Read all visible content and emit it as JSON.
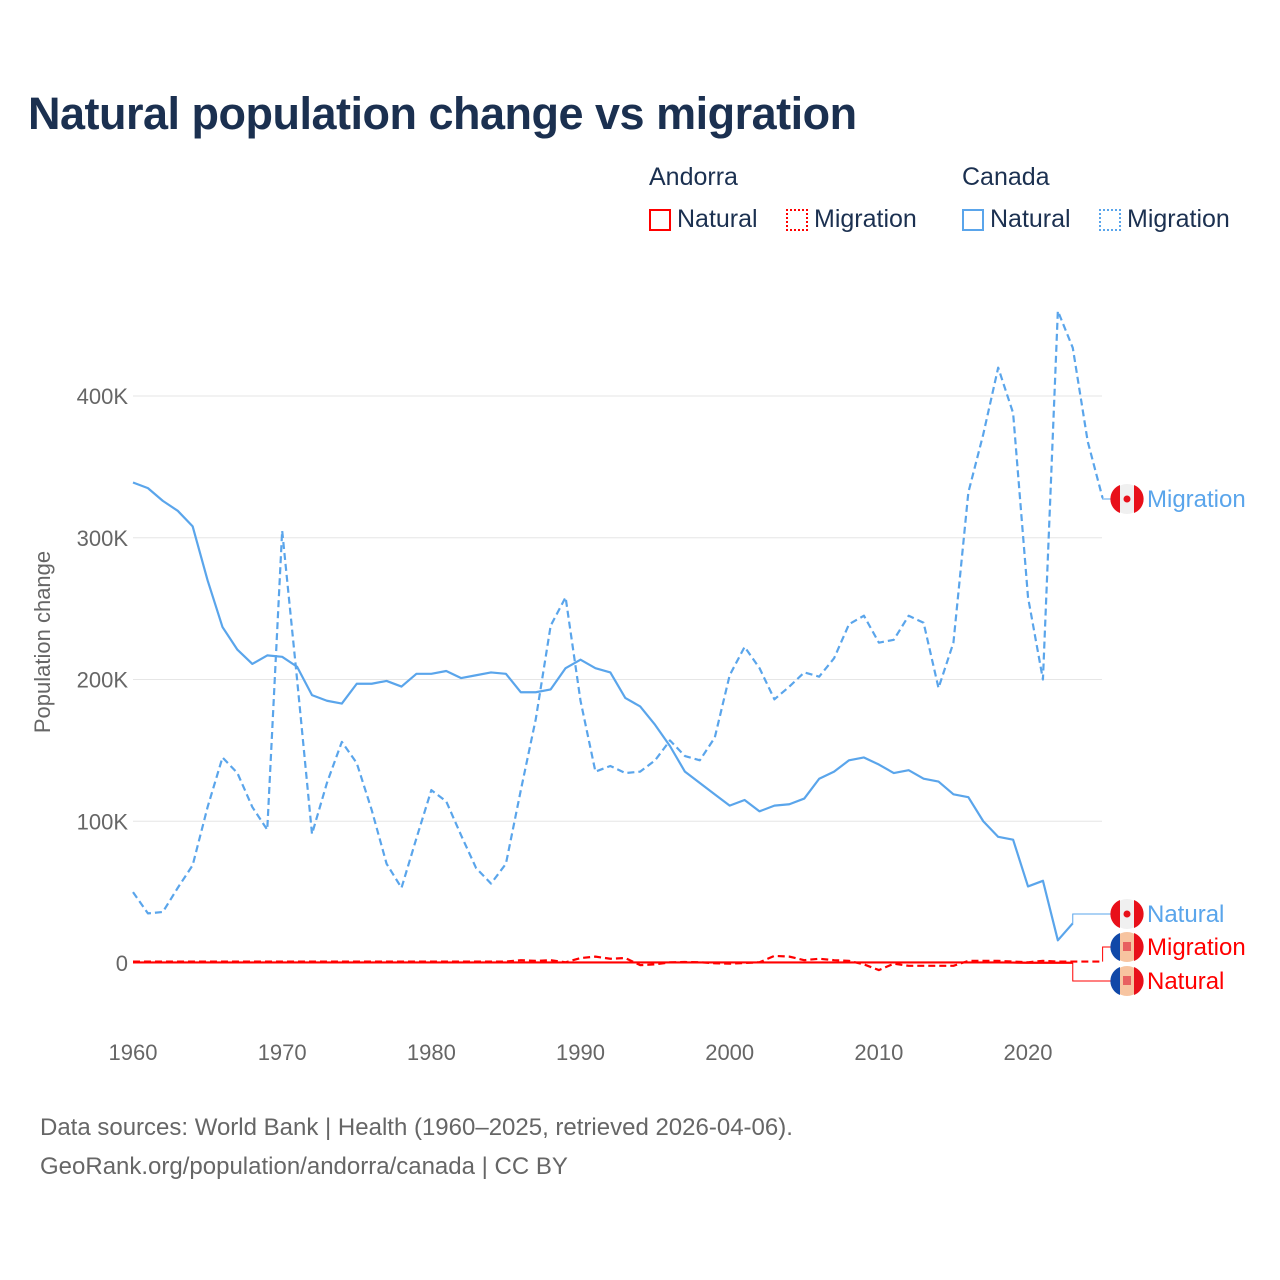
{
  "title": "Natural population change vs migration",
  "legend": {
    "groups": [
      {
        "name": "Andorra",
        "items": [
          {
            "label": "Natural",
            "style": "solid"
          },
          {
            "label": "Migration",
            "style": "dotted"
          }
        ],
        "color": "#ff0000"
      },
      {
        "name": "Canada",
        "items": [
          {
            "label": "Natural",
            "style": "solid"
          },
          {
            "label": "Migration",
            "style": "dotted"
          }
        ],
        "color": "#5aa5eb"
      }
    ]
  },
  "footer": {
    "line1": "Data sources: World Bank | Health (1960–2025, retrieved 2026-04-06).",
    "line2": "GeoRank.org/population/andorra/canada | CC BY"
  },
  "chart_data": {
    "type": "line",
    "title": "Natural population change vs migration",
    "xlabel": "",
    "ylabel": "Population change",
    "xlim": [
      1960,
      2025
    ],
    "ylim": [
      -50000,
      480000
    ],
    "xticks": [
      {
        "v": 1960,
        "label": "1960"
      },
      {
        "v": 1970,
        "label": "1970"
      },
      {
        "v": 1980,
        "label": "1980"
      },
      {
        "v": 1990,
        "label": "1990"
      },
      {
        "v": 2000,
        "label": "2000"
      },
      {
        "v": 2010,
        "label": "2010"
      },
      {
        "v": 2020,
        "label": "2020"
      }
    ],
    "yticks": [
      {
        "v": 0,
        "label": "0"
      },
      {
        "v": 100000,
        "label": "100K"
      },
      {
        "v": 200000,
        "label": "200K"
      },
      {
        "v": 300000,
        "label": "300K"
      },
      {
        "v": 400000,
        "label": "400K"
      }
    ],
    "grid": true,
    "series": [
      {
        "name": "Canada Migration",
        "end_label": "Migration",
        "color": "#5aa5eb",
        "dash": true,
        "start": 1960,
        "values": [
          50,
          35,
          36,
          53,
          69,
          110,
          145,
          134,
          110,
          94,
          305,
          200,
          91,
          127,
          156,
          141,
          108,
          70,
          53,
          88,
          122,
          114,
          90,
          67,
          56,
          70,
          122,
          172,
          238,
          258,
          185,
          135,
          139,
          134,
          135,
          143,
          157,
          146,
          143,
          159,
          203,
          223,
          208,
          186,
          195,
          205,
          202,
          215,
          239,
          245,
          226,
          228,
          245,
          240,
          194,
          226,
          332,
          373,
          420,
          388,
          258,
          200,
          460,
          434,
          368,
          328
        ],
        "unit": 1000
      },
      {
        "name": "Canada Natural",
        "end_label": "Natural",
        "color": "#5aa5eb",
        "dash": false,
        "start": 1960,
        "values": [
          339,
          335,
          326,
          319,
          308,
          270,
          237,
          221,
          211,
          217,
          216,
          209,
          189,
          185,
          183,
          197,
          197,
          199,
          195,
          204,
          204,
          206,
          201,
          203,
          205,
          204,
          191,
          191,
          193,
          208,
          214,
          208,
          205,
          187,
          181,
          168,
          153,
          135,
          127,
          119,
          111,
          115,
          107,
          111,
          112,
          116,
          130,
          135,
          143,
          145,
          140,
          134,
          136,
          130,
          128,
          119,
          117,
          100,
          89,
          87,
          54,
          58,
          16,
          28
        ],
        "unit": 1000
      },
      {
        "name": "Andorra Migration",
        "end_label": "Migration",
        "color": "#ff0000",
        "dash": true,
        "start": 1960,
        "values": [
          1,
          1,
          1,
          1,
          1,
          1,
          1,
          1,
          1,
          1,
          1,
          1,
          1,
          1,
          1,
          1,
          1,
          1,
          1,
          1,
          1,
          1,
          1,
          1,
          1,
          1,
          2,
          1.5,
          2,
          0.5,
          3.5,
          4.5,
          3,
          3.5,
          -1.5,
          -1,
          0.5,
          0.7,
          0.5,
          -0.2,
          -0.5,
          0,
          0.5,
          5,
          4.5,
          2,
          3,
          2,
          1.5,
          -1,
          -5,
          -0.5,
          -2,
          -2,
          -2,
          -2,
          1.5,
          1.5,
          1.5,
          1,
          0.5,
          1.5,
          1,
          1,
          1,
          1
        ],
        "unit": 1000
      },
      {
        "name": "Andorra Natural",
        "end_label": "Natural",
        "color": "#ff0000",
        "dash": false,
        "start": 1960,
        "values": [
          0.4,
          0.4,
          0.4,
          0.4,
          0.4,
          0.4,
          0.4,
          0.4,
          0.4,
          0.4,
          0.4,
          0.4,
          0.4,
          0.4,
          0.4,
          0.4,
          0.4,
          0.4,
          0.4,
          0.4,
          0.4,
          0.4,
          0.4,
          0.4,
          0.4,
          0.4,
          0.4,
          0.4,
          0.4,
          0.4,
          0.4,
          0.4,
          0.4,
          0.4,
          0.4,
          0.4,
          0.4,
          0.4,
          0.4,
          0.4,
          0.4,
          0.4,
          0.4,
          0.4,
          0.4,
          0.4,
          0.4,
          0.4,
          0.4,
          0.4,
          0.4,
          0.4,
          0.4,
          0.4,
          0.4,
          0.4,
          0.4,
          0.4,
          0.4,
          0.3,
          0.2,
          0.2,
          0.2,
          0.2
        ],
        "unit": 1000
      }
    ]
  }
}
